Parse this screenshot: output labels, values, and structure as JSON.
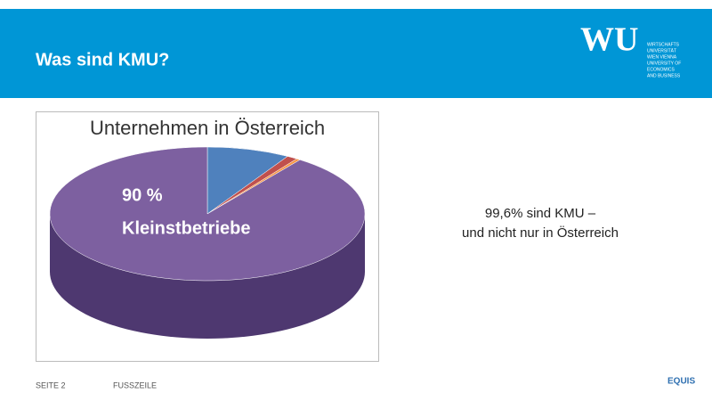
{
  "header": {
    "title": "Was sind KMU?",
    "logo": "WU",
    "logo_lines": [
      "WIRTSCHAFTS",
      "UNIVERSITÄT",
      "WIEN VIENNA",
      "UNIVERSITY OF",
      "ECONOMICS",
      "AND BUSINESS"
    ]
  },
  "chart_data": {
    "type": "pie",
    "title": "Unternehmen in Österreich",
    "categories": [
      "Kleinstbetriebe",
      null,
      null,
      null
    ],
    "values": [
      90,
      8.5,
      1.1,
      0.4
    ],
    "value_labels": [
      "90 %",
      null,
      null,
      null
    ],
    "colors": [
      "#7d60a0",
      "#4f81bd",
      "#c0504d",
      "#f79646"
    ]
  },
  "text": [
    "99,6% sind KMU –",
    "und nicht nur in Österreich"
  ],
  "footer": {
    "page": "SEITE 2",
    "label": "FUSSZEILE",
    "logo": "EQUIS"
  }
}
